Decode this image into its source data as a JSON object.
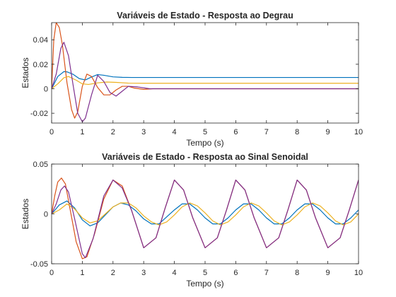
{
  "chart_data": [
    {
      "type": "line",
      "title": "Variáveis de Estado - Resposta ao Degrau",
      "xlabel": "Tempo (s)",
      "ylabel": "Estados",
      "xlim": [
        0,
        10
      ],
      "ylim": [
        -0.028,
        0.054
      ],
      "xticks": [
        "0",
        "1",
        "2",
        "3",
        "4",
        "5",
        "6",
        "7",
        "8",
        "9",
        "10"
      ],
      "yticks": [
        {
          "value": -0.02,
          "label": "-0.02"
        },
        {
          "value": 0,
          "label": "0"
        },
        {
          "value": 0.02,
          "label": "0.02"
        },
        {
          "value": 0.04,
          "label": "0.04"
        }
      ],
      "grid": false,
      "series": [
        {
          "color": "#0072BD",
          "x": [
            0,
            0.2,
            0.4,
            0.5,
            0.7,
            0.9,
            1.1,
            1.3,
            1.5,
            1.7,
            2,
            2.3,
            2.6,
            3,
            4,
            5,
            6,
            7,
            8,
            9,
            10
          ],
          "values": [
            0,
            0.01,
            0.014,
            0.0138,
            0.0118,
            0.0083,
            0.0072,
            0.0096,
            0.0116,
            0.011,
            0.0097,
            0.0093,
            0.0092,
            0.0092,
            0.0092,
            0.0092,
            0.0092,
            0.0092,
            0.0092,
            0.0092,
            0.0092
          ]
        },
        {
          "color": "#D95319",
          "x": [
            0,
            0.07,
            0.15,
            0.25,
            0.35,
            0.5,
            0.65,
            0.75,
            0.85,
            1.0,
            1.15,
            1.3,
            1.5,
            1.7,
            1.9,
            2.1,
            2.3,
            2.5,
            2.7,
            3.0,
            3.3,
            4,
            5,
            6,
            7,
            8,
            9,
            10
          ],
          "values": [
            0,
            0.04,
            0.054,
            0.05,
            0.036,
            0.005,
            -0.017,
            -0.024,
            -0.019,
            0.002,
            0.012,
            0.01,
            0.001,
            -0.005,
            -0.005,
            -0.001,
            0.002,
            0.002,
            0.0005,
            -0.0005,
            0,
            0,
            0,
            0,
            0,
            0,
            0,
            0
          ]
        },
        {
          "color": "#EDB120",
          "x": [
            0,
            0.2,
            0.4,
            0.55,
            0.8,
            1.0,
            1.2,
            1.5,
            1.8,
            2.1,
            2.5,
            3.0,
            4,
            5,
            6,
            7,
            8,
            9,
            10
          ],
          "values": [
            0,
            0.004,
            0.009,
            0.01,
            0.007,
            0.004,
            0.0035,
            0.0048,
            0.0055,
            0.0052,
            0.0046,
            0.0045,
            0.0045,
            0.0045,
            0.0045,
            0.0045,
            0.0045,
            0.0045,
            0.0045
          ]
        },
        {
          "color": "#7E2F8E",
          "x": [
            0,
            0.15,
            0.3,
            0.4,
            0.55,
            0.7,
            0.85,
            1.0,
            1.1,
            1.3,
            1.5,
            1.7,
            1.9,
            2.1,
            2.3,
            2.5,
            2.8,
            3.2,
            4,
            5,
            6,
            7,
            8,
            9,
            10
          ],
          "values": [
            0,
            0.012,
            0.033,
            0.038,
            0.027,
            0.003,
            -0.02,
            -0.027,
            -0.024,
            -0.005,
            0.011,
            0.006,
            -0.003,
            -0.006,
            -0.002,
            0.002,
            0.0015,
            0,
            0,
            0,
            0,
            0,
            0,
            0,
            0
          ]
        }
      ]
    },
    {
      "type": "line",
      "title": "Variáveis de Estado - Resposta ao Sinal Senoidal",
      "xlabel": "Tempo (s)",
      "ylabel": "Estados",
      "xlim": [
        0,
        10
      ],
      "ylim": [
        -0.05,
        0.05
      ],
      "xticks": [
        "0",
        "1",
        "2",
        "3",
        "4",
        "5",
        "6",
        "7",
        "8",
        "9",
        "10"
      ],
      "yticks": [
        {
          "value": -0.05,
          "label": "-0.05"
        },
        {
          "value": 0,
          "label": "0"
        },
        {
          "value": 0.05,
          "label": "0.05"
        }
      ],
      "grid": false,
      "series": [
        {
          "color": "#0072BD",
          "x": [
            0,
            0.25,
            0.5,
            0.75,
            1.0,
            1.25,
            1.5,
            1.75,
            2.0,
            2.25,
            2.5,
            2.75,
            3.0,
            3.25,
            3.5,
            3.75,
            4.0,
            4.25,
            4.5,
            4.75,
            5.0,
            5.25,
            5.5,
            5.75,
            6.0,
            6.25,
            6.5,
            6.75,
            7.0,
            7.25,
            7.5,
            7.75,
            8.0,
            8.25,
            8.5,
            8.75,
            9.0,
            9.25,
            9.5,
            9.75,
            10.0
          ],
          "values": [
            0,
            0.009,
            0.013,
            0.006,
            -0.006,
            -0.012,
            -0.009,
            -0.001,
            0.007,
            0.011,
            0.009,
            0.003,
            -0.005,
            -0.01,
            -0.01,
            -0.003,
            0.004,
            0.01,
            0.01,
            0.004,
            -0.004,
            -0.01,
            -0.01,
            -0.004,
            0.004,
            0.01,
            0.01,
            0.004,
            -0.004,
            -0.01,
            -0.01,
            -0.004,
            0.004,
            0.01,
            0.01,
            0.004,
            -0.004,
            -0.01,
            -0.01,
            -0.004,
            0.004
          ]
        },
        {
          "color": "#D95319",
          "x": [
            0,
            0.1,
            0.2,
            0.32,
            0.45,
            0.6,
            0.8,
            1.0,
            1.15,
            1.4,
            1.7,
            2.0,
            2.3,
            2.6,
            3.0,
            3.4,
            3.7,
            4.0,
            4.3,
            4.6,
            5.0,
            5.4,
            5.7,
            6.0,
            6.3,
            6.6,
            7.0,
            7.4,
            7.7,
            8.0,
            8.3,
            8.6,
            9.0,
            9.4,
            9.7,
            10.0
          ],
          "values": [
            0,
            0.018,
            0.032,
            0.036,
            0.03,
            0.005,
            -0.028,
            -0.045,
            -0.043,
            -0.02,
            0.015,
            0.034,
            0.028,
            0.004,
            -0.034,
            -0.024,
            0.006,
            0.034,
            0.024,
            -0.004,
            -0.034,
            -0.024,
            0.004,
            0.034,
            0.024,
            -0.004,
            -0.034,
            -0.024,
            0.004,
            0.034,
            0.024,
            -0.004,
            -0.034,
            -0.024,
            0.004,
            0.034
          ]
        },
        {
          "color": "#EDB120",
          "x": [
            0,
            0.25,
            0.5,
            0.75,
            1.0,
            1.25,
            1.5,
            1.75,
            2.0,
            2.25,
            2.5,
            2.75,
            3.0,
            3.25,
            3.5,
            3.75,
            4.0,
            4.25,
            4.5,
            4.75,
            5.0,
            5.25,
            5.5,
            5.75,
            6.0,
            6.25,
            6.5,
            6.75,
            7.0,
            7.25,
            7.5,
            7.75,
            8.0,
            8.25,
            8.5,
            8.75,
            9.0,
            9.25,
            9.5,
            9.75,
            10.0
          ],
          "values": [
            0,
            0.004,
            0.01,
            0.005,
            -0.004,
            -0.009,
            -0.007,
            0,
            0.007,
            0.011,
            0.011,
            0.006,
            -0.002,
            -0.008,
            -0.011,
            -0.008,
            -0.001,
            0.007,
            0.011,
            0.008,
            0.001,
            -0.007,
            -0.011,
            -0.008,
            -0.001,
            0.007,
            0.011,
            0.008,
            0.001,
            -0.007,
            -0.011,
            -0.008,
            -0.001,
            0.007,
            0.011,
            0.008,
            0.001,
            -0.007,
            -0.011,
            -0.008,
            0
          ]
        },
        {
          "color": "#7E2F8E",
          "x": [
            0,
            0.15,
            0.3,
            0.42,
            0.55,
            0.75,
            1.0,
            1.1,
            1.35,
            1.7,
            2.0,
            2.3,
            2.6,
            3.0,
            3.4,
            3.7,
            4.0,
            4.3,
            4.6,
            5.0,
            5.4,
            5.7,
            6.0,
            6.3,
            6.6,
            7.0,
            7.4,
            7.7,
            8.0,
            8.3,
            8.6,
            9.0,
            9.4,
            9.7,
            10.0
          ],
          "values": [
            0,
            0.01,
            0.024,
            0.028,
            0.022,
            -0.005,
            -0.04,
            -0.044,
            -0.025,
            0.018,
            0.034,
            0.026,
            0.004,
            -0.034,
            -0.024,
            0.006,
            0.034,
            0.024,
            -0.004,
            -0.034,
            -0.024,
            0.004,
            0.034,
            0.024,
            -0.004,
            -0.034,
            -0.024,
            0.004,
            0.034,
            0.024,
            -0.004,
            -0.034,
            -0.024,
            0.004,
            0.034
          ]
        }
      ]
    }
  ]
}
